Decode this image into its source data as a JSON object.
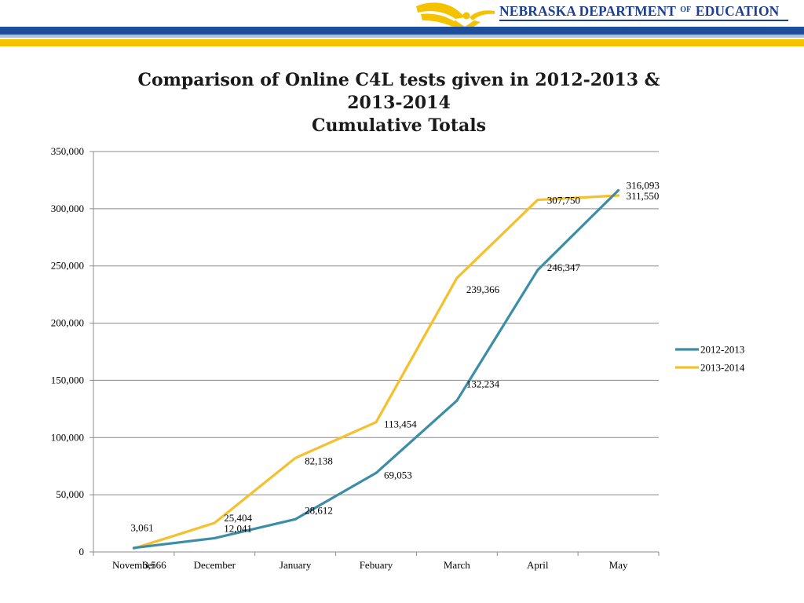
{
  "header": {
    "org_name_part1": "NEBRASKA DEPARTMENT",
    "org_name_of": "OF",
    "org_name_part2": "EDUCATION"
  },
  "colors": {
    "brand_navy": "#1c3f94",
    "brand_gold": "#f5c200",
    "stripe_blue": "#1e4d9c",
    "stripe_light_blue": "#a7c2df",
    "series_2012_2013": "#3b8ea5",
    "series_2013_2014": "#f5c02c"
  },
  "chart_data": {
    "type": "line",
    "title_line1": "Comparison of Online C4L tests given in 2012-2013 &",
    "title_line2": "2013-2014",
    "title_line3": "Cumulative Totals",
    "xlabel": "",
    "ylabel": "",
    "categories": [
      "November",
      "December",
      "January",
      "Febuary",
      "March",
      "April",
      "May"
    ],
    "ylim": [
      0,
      350000
    ],
    "yticks": [
      0,
      50000,
      100000,
      150000,
      200000,
      250000,
      300000,
      350000
    ],
    "ytick_labels": [
      "0",
      "50,000",
      "100,000",
      "150,000",
      "200,000",
      "250,000",
      "300,000",
      "350,000"
    ],
    "grid": true,
    "legend_position": "right",
    "series": [
      {
        "name": "2012-2013",
        "color": "#3b8ea5",
        "values": [
          3566,
          12041,
          28612,
          69053,
          132234,
          246347,
          316093
        ],
        "labels": [
          "3,566",
          "12,041",
          "28,612",
          "69,053",
          "132,234",
          "246,347",
          "316,093"
        ]
      },
      {
        "name": "2013-2014",
        "color": "#f5c02c",
        "values": [
          3061,
          25404,
          82138,
          113454,
          239366,
          307750,
          311550
        ],
        "labels": [
          "3,061",
          "25,404",
          "82,138",
          "113,454",
          "239,366",
          "307,750",
          "311,550"
        ]
      }
    ]
  }
}
